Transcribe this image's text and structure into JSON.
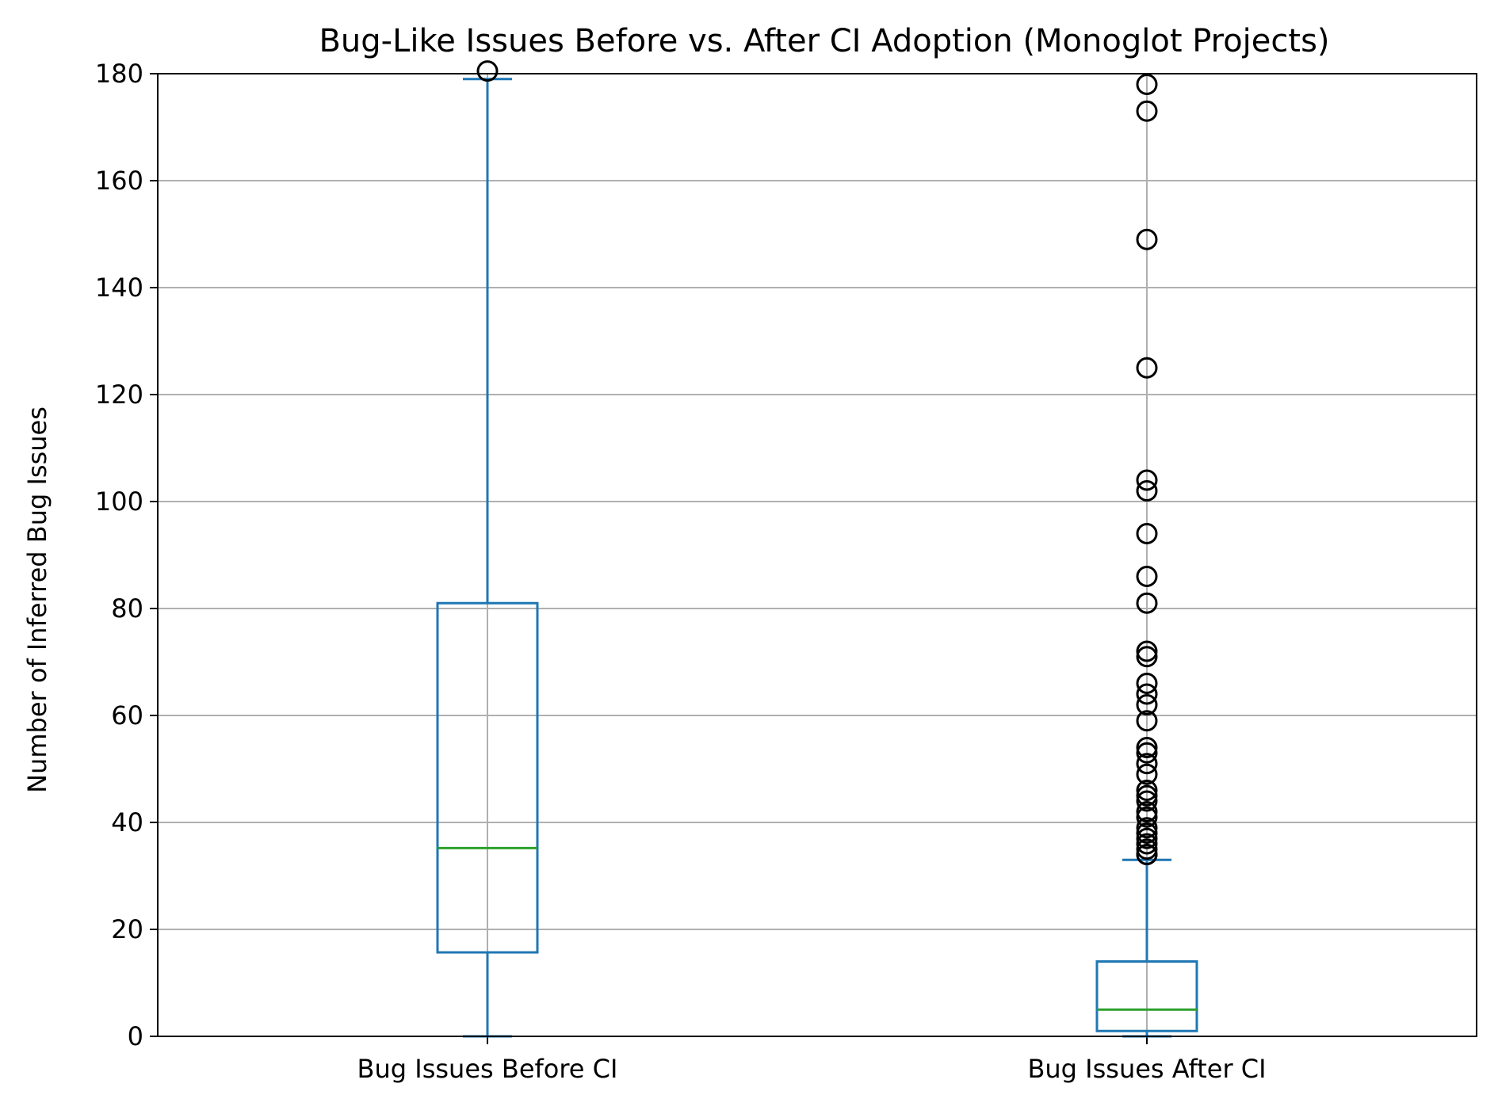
{
  "chart_data": {
    "type": "box",
    "title": "Bug-Like Issues Before vs. After CI Adoption (Monoglot Projects)",
    "xlabel": "",
    "ylabel": "Number of Inferred Bug Issues",
    "ylim": [
      0,
      180
    ],
    "yticks": [
      0,
      20,
      40,
      60,
      80,
      100,
      120,
      140,
      160,
      180
    ],
    "grid": true,
    "categories": [
      "Bug Issues Before CI",
      "Bug Issues After CI"
    ],
    "boxes": [
      {
        "name": "Bug Issues Before CI",
        "whisker_low": 0,
        "q1": 15.7,
        "median": 35.2,
        "q3": 81,
        "whisker_high": 179,
        "outliers": [
          180.5
        ]
      },
      {
        "name": "Bug Issues After CI",
        "whisker_low": 0,
        "q1": 1,
        "median": 5,
        "q3": 14,
        "whisker_high": 33,
        "outliers": [
          178,
          173,
          149,
          125,
          104,
          102,
          94,
          86,
          81,
          72,
          71,
          66,
          64,
          62,
          59,
          54,
          53,
          51,
          49,
          46,
          45,
          44,
          42,
          41,
          39,
          38,
          37,
          36,
          35,
          34,
          34
        ]
      }
    ],
    "colors": {
      "box": "#1f77b4",
      "median": "#2ca02c",
      "grid": "#b0b0b0",
      "outlier": "#000000"
    }
  }
}
